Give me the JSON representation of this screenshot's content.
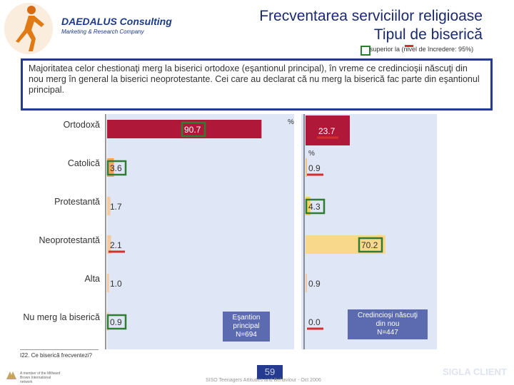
{
  "header": {
    "logo_title": "DAEDALUS Consulting",
    "logo_subtitle": "Marketing & Research Company",
    "title_line1": "Frecventarea serviciilor religioase",
    "title_line2": "Tipul de biserică"
  },
  "legend": {
    "text": "superior la    (nivel de încredere: 95%)",
    "higher_color": "#2e7d32",
    "lower_color": "#d32f2f"
  },
  "note": "Majoritatea celor chestionaţi merg la biserici ortodoxe (eşantionul principal), în vreme ce credincioşii născuţi din nou merg în general la biserici neoprotestante. Cei care au declarat că nu merg la biserică fac parte din eşantionul principal.",
  "chart_data": {
    "type": "bar",
    "orientation": "horizontal",
    "unit": "%",
    "categories": [
      "Ortodoxă",
      "Catolică",
      "Protestantă",
      "Neoprotestantă",
      "Alta",
      "Nu merg la biserică"
    ],
    "series": [
      {
        "name": "Eşantion principal N=694",
        "values": [
          90.7,
          3.6,
          1.7,
          2.1,
          1.0,
          0.9
        ],
        "labels": [
          "90.7",
          "3.6",
          "1.7",
          "2.1",
          "1.0",
          "0.9"
        ],
        "bar_colors": [
          "#b0183a",
          "#f0a860",
          "#f6c9a0",
          "#f6c9a0",
          "#f6c9a0",
          "#f6c9a0"
        ],
        "markers": [
          "higher",
          "higher",
          "none",
          "lower",
          "none",
          "higher"
        ]
      },
      {
        "name": "Credincioşi născuţi din nou N=447",
        "values": [
          23.7,
          0.9,
          4.3,
          70.2,
          0.9,
          0.0
        ],
        "labels": [
          "23.7",
          "0.9",
          "4.3",
          "70.2",
          "0.9",
          "0.0"
        ],
        "bar_colors": [
          "#b0183a",
          "#f0c080",
          "#f5d060",
          "#f8d88a",
          "#f6c9a0",
          "#f6c9a0"
        ],
        "markers": [
          "lower",
          "lower",
          "higher",
          "higher",
          "none",
          "lower"
        ]
      }
    ],
    "panel_labels": [
      [
        "Eşantion",
        "principal",
        "N=694"
      ],
      [
        "Credincioşi născuţi",
        "din nou",
        "N=447"
      ]
    ],
    "unit_labels": [
      "%",
      "%"
    ],
    "xlim": [
      0,
      100
    ],
    "panel_background": "#dfe6f5"
  },
  "footnote": "I22. Ce biserică frecventezi?",
  "footer": {
    "page": "59",
    "source": "SISO Teenagers Attitudes and Behaviour - Oct 2006",
    "left_text": "A member of the Millward Brown International network",
    "right_text": "SIGLA CLIENT"
  }
}
